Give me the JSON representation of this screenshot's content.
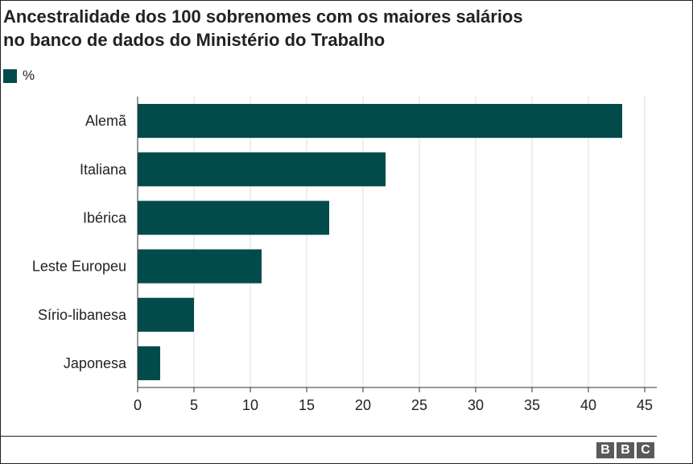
{
  "chart_data": {
    "type": "bar",
    "orientation": "horizontal",
    "title_lines": [
      "Ancestralidade dos 100 sobrenomes com os maiores salários",
      "no banco de dados do Ministério do Trabalho"
    ],
    "legend": [
      {
        "name": "%",
        "color": "#024b4a"
      }
    ],
    "legend_placement": "top-left",
    "categories": [
      "Alemã",
      "Italiana",
      "Ibérica",
      "Leste Europeu",
      "Sírio-libanesa",
      "Japonesa"
    ],
    "series": [
      {
        "name": "%",
        "values": [
          43,
          22,
          17,
          11,
          5,
          2
        ],
        "color": "#024b4a"
      }
    ],
    "xlim": [
      0,
      45
    ],
    "xticks": [
      "0",
      "5",
      "10",
      "15",
      "20",
      "25",
      "30",
      "35",
      "40",
      "45"
    ],
    "xtick_values": [
      0,
      5,
      10,
      15,
      20,
      25,
      30,
      35,
      40,
      45
    ],
    "grid": "vertical"
  },
  "colors": {
    "bar": "#024b4a",
    "grid": "#dddddd",
    "axis": "#333333",
    "text": "#222222"
  },
  "footer": {
    "logo_letters": [
      "B",
      "B",
      "C"
    ]
  }
}
